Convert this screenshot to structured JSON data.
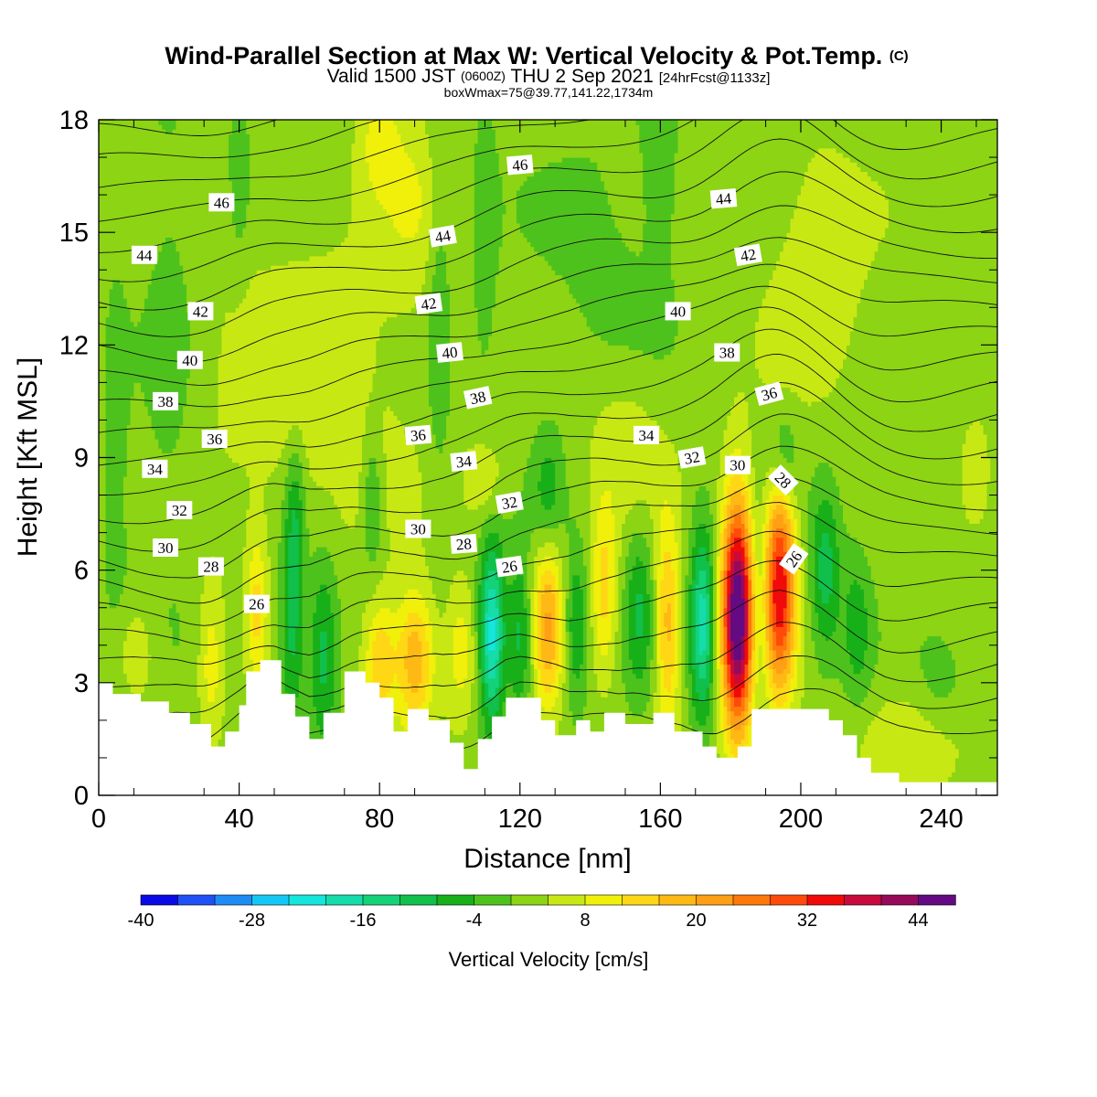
{
  "chart_data": {
    "type": "heatmap",
    "title": "Wind-Parallel Section at Max W: Vertical Velocity & Pot.Temp.",
    "title_mark": "(C)",
    "subtitle": {
      "valid_prefix": "Valid 1500 JST",
      "utc": "(0600Z)",
      "date": "THU 2 Sep 2021",
      "forecast": "[24hrFcst@1133z]"
    },
    "subtitle2": "boxWmax=75@39.77,141.22,1734m",
    "xlabel": "Distance [nm]",
    "ylabel": "Height [Kft MSL]",
    "xlim": [
      0,
      256
    ],
    "ylim": [
      0,
      18
    ],
    "x_ticks": [
      "0",
      "40",
      "80",
      "120",
      "160",
      "200",
      "240"
    ],
    "x_tick_values": [
      0,
      40,
      80,
      120,
      160,
      200,
      240
    ],
    "y_ticks": [
      "0",
      "3",
      "6",
      "9",
      "12",
      "15",
      "18"
    ],
    "y_tick_values": [
      0,
      3,
      6,
      9,
      12,
      15,
      18
    ],
    "colorbar": {
      "label": "Vertical Velocity [cm/s]",
      "tick_labels": [
        "-40",
        "-28",
        "-16",
        "-4",
        "8",
        "20",
        "32",
        "44"
      ],
      "tick_values": [
        -40,
        -28,
        -16,
        -4,
        8,
        20,
        32,
        44
      ],
      "min": -40,
      "max": 48,
      "step": 4,
      "colors": [
        "#0a0ae6",
        "#1e50f5",
        "#1e8cf5",
        "#14c8f5",
        "#14e6dc",
        "#14dcaa",
        "#14d278",
        "#10c04a",
        "#18b018",
        "#4ec21c",
        "#8cd414",
        "#c8e814",
        "#f0f00a",
        "#ffd714",
        "#ffb914",
        "#ffa014",
        "#ff780a",
        "#ff4b0a",
        "#f00a0a",
        "#c80a3c",
        "#960a5a",
        "#640a82"
      ]
    },
    "terrain": [
      [
        0,
        3.0
      ],
      [
        4,
        3.0
      ],
      [
        4,
        2.7
      ],
      [
        12,
        2.7
      ],
      [
        12,
        2.5
      ],
      [
        20,
        2.5
      ],
      [
        20,
        2.2
      ],
      [
        26,
        2.2
      ],
      [
        26,
        1.9
      ],
      [
        32,
        1.9
      ],
      [
        32,
        1.3
      ],
      [
        36,
        1.3
      ],
      [
        36,
        1.7
      ],
      [
        40,
        1.7
      ],
      [
        40,
        2.4
      ],
      [
        42,
        2.4
      ],
      [
        42,
        3.3
      ],
      [
        46,
        3.3
      ],
      [
        46,
        3.6
      ],
      [
        52,
        3.6
      ],
      [
        52,
        2.7
      ],
      [
        56,
        2.7
      ],
      [
        56,
        2.1
      ],
      [
        60,
        2.1
      ],
      [
        60,
        1.5
      ],
      [
        64,
        1.5
      ],
      [
        64,
        2.2
      ],
      [
        70,
        2.2
      ],
      [
        70,
        3.3
      ],
      [
        76,
        3.3
      ],
      [
        76,
        3.0
      ],
      [
        80,
        3.0
      ],
      [
        80,
        2.6
      ],
      [
        84,
        2.6
      ],
      [
        84,
        1.7
      ],
      [
        88,
        1.7
      ],
      [
        88,
        2.3
      ],
      [
        94,
        2.3
      ],
      [
        94,
        2.0
      ],
      [
        100,
        2.0
      ],
      [
        100,
        1.4
      ],
      [
        104,
        1.4
      ],
      [
        104,
        0.7
      ],
      [
        108,
        0.7
      ],
      [
        108,
        1.5
      ],
      [
        112,
        1.5
      ],
      [
        112,
        2.1
      ],
      [
        116,
        2.1
      ],
      [
        116,
        2.6
      ],
      [
        126,
        2.6
      ],
      [
        126,
        2.0
      ],
      [
        130,
        2.0
      ],
      [
        130,
        1.6
      ],
      [
        136,
        1.6
      ],
      [
        136,
        2.0
      ],
      [
        140,
        2.0
      ],
      [
        140,
        1.7
      ],
      [
        144,
        1.7
      ],
      [
        144,
        2.2
      ],
      [
        150,
        2.2
      ],
      [
        150,
        1.9
      ],
      [
        158,
        1.9
      ],
      [
        158,
        2.2
      ],
      [
        164,
        2.2
      ],
      [
        164,
        1.7
      ],
      [
        172,
        1.7
      ],
      [
        172,
        1.3
      ],
      [
        176,
        1.3
      ],
      [
        176,
        1.0
      ],
      [
        182,
        1.0
      ],
      [
        182,
        1.3
      ],
      [
        186,
        1.3
      ],
      [
        186,
        2.3
      ],
      [
        208,
        2.3
      ],
      [
        208,
        2.0
      ],
      [
        212,
        2.0
      ],
      [
        212,
        1.6
      ],
      [
        216,
        1.6
      ],
      [
        216,
        1.0
      ],
      [
        220,
        1.0
      ],
      [
        220,
        0.6
      ],
      [
        228,
        0.6
      ],
      [
        228,
        0.35
      ],
      [
        256,
        0.35
      ]
    ],
    "w_background": 2,
    "w_cells": [
      {
        "x": 182,
        "z": 4.8,
        "sx": 3.2,
        "sz": 2.2,
        "w": 48
      },
      {
        "x": 194,
        "z": 5.6,
        "sx": 3.2,
        "sz": 2.0,
        "w": 34
      },
      {
        "x": 172,
        "z": 4.6,
        "sx": 2.5,
        "sz": 1.8,
        "w": -20
      },
      {
        "x": 188,
        "z": 5.0,
        "sx": 2.0,
        "sz": 2.0,
        "w": -8
      },
      {
        "x": 162,
        "z": 4.5,
        "sx": 2.5,
        "sz": 2.0,
        "w": 16
      },
      {
        "x": 154,
        "z": 5.0,
        "sx": 3.0,
        "sz": 1.6,
        "w": -10
      },
      {
        "x": 144,
        "z": 5.5,
        "sx": 2.6,
        "sz": 1.6,
        "w": 12
      },
      {
        "x": 136,
        "z": 4.5,
        "sx": 2.5,
        "sz": 1.5,
        "w": -10
      },
      {
        "x": 128,
        "z": 4.6,
        "sx": 3.0,
        "sz": 1.6,
        "w": 18
      },
      {
        "x": 120,
        "z": 4.2,
        "sx": 2.5,
        "sz": 1.5,
        "w": -12
      },
      {
        "x": 112,
        "z": 4.3,
        "sx": 2.5,
        "sz": 1.7,
        "w": -24
      },
      {
        "x": 103,
        "z": 3.8,
        "sx": 3.0,
        "sz": 1.3,
        "w": 8
      },
      {
        "x": 90,
        "z": 3.6,
        "sx": 4.0,
        "sz": 1.3,
        "w": 18
      },
      {
        "x": 80,
        "z": 3.5,
        "sx": 3.0,
        "sz": 1.2,
        "w": 14
      },
      {
        "x": 64,
        "z": 3.8,
        "sx": 3.0,
        "sz": 1.8,
        "w": -12
      },
      {
        "x": 55,
        "z": 4.5,
        "sx": 2.5,
        "sz": 2.0,
        "w": -12
      },
      {
        "x": 45,
        "z": 5.0,
        "sx": 2.0,
        "sz": 1.5,
        "w": 10
      },
      {
        "x": 32,
        "z": 3.5,
        "sx": 2.5,
        "sz": 1.5,
        "w": 8
      },
      {
        "x": 10,
        "z": 3.8,
        "sx": 5.0,
        "sz": 1.0,
        "w": 6
      },
      {
        "x": 56,
        "z": 7.5,
        "sx": 2.0,
        "sz": 1.6,
        "w": -8
      },
      {
        "x": 78,
        "z": 7.8,
        "sx": 2.0,
        "sz": 1.4,
        "w": -8
      },
      {
        "x": 128,
        "z": 8.0,
        "sx": 3.0,
        "sz": 1.2,
        "w": -8
      },
      {
        "x": 195,
        "z": 9.0,
        "sx": 3.0,
        "sz": 1.0,
        "w": -9
      },
      {
        "x": 207,
        "z": 6.0,
        "sx": 3.0,
        "sz": 1.6,
        "w": -12
      },
      {
        "x": 216,
        "z": 4.5,
        "sx": 3.0,
        "sz": 1.5,
        "w": -8
      },
      {
        "x": 232,
        "z": 1.5,
        "sx": 12.0,
        "sz": 1.0,
        "w": 5
      },
      {
        "x": 240,
        "z": 2.8,
        "sx": 5.0,
        "sz": 1.0,
        "w": -4
      },
      {
        "x": 150,
        "z": 9.4,
        "sx": 8.0,
        "sz": 1.5,
        "w": 5
      },
      {
        "x": 110,
        "z": 8.4,
        "sx": 4.0,
        "sz": 0.8,
        "w": 6
      },
      {
        "x": 60,
        "z": 10.8,
        "sx": 20.0,
        "sz": 3.0,
        "w": 5
      },
      {
        "x": 20,
        "z": 12.0,
        "sx": 5.0,
        "sz": 5.0,
        "w": -4
      },
      {
        "x": 5,
        "z": 8.0,
        "sx": 3.0,
        "sz": 5.0,
        "w": -4
      },
      {
        "x": 97,
        "z": 13.5,
        "sx": 2.5,
        "sz": 4.0,
        "w": -6
      },
      {
        "x": 110,
        "z": 15.0,
        "sx": 2.5,
        "sz": 3.0,
        "w": -5
      },
      {
        "x": 40,
        "z": 17.0,
        "sx": 2.0,
        "sz": 2.0,
        "w": -5
      },
      {
        "x": 80,
        "z": 17.5,
        "sx": 4.0,
        "sz": 1.0,
        "w": 7
      },
      {
        "x": 90,
        "z": 16.0,
        "sx": 8.0,
        "sz": 2.0,
        "w": 5
      },
      {
        "x": 145,
        "z": 14.5,
        "sx": 15.0,
        "sz": 3.0,
        "w": -3
      },
      {
        "x": 205,
        "z": 14.0,
        "sx": 10.0,
        "sz": 2.5,
        "w": 5
      },
      {
        "x": 160,
        "z": 17.0,
        "sx": 3.0,
        "sz": 2.0,
        "w": -5
      },
      {
        "x": 250,
        "z": 8.5,
        "sx": 3.0,
        "sz": 1.0,
        "w": 6
      }
    ],
    "theta_lines": {
      "min": 23,
      "max": 48,
      "step": 1,
      "surface_value": 23.4,
      "lapse_per_kft": 1.33
    },
    "contour_labels": [
      {
        "text": "46",
        "x": 35,
        "z": 15.8,
        "angle": 0
      },
      {
        "text": "44",
        "x": 13,
        "z": 14.4,
        "angle": 0
      },
      {
        "text": "42",
        "x": 29,
        "z": 12.9,
        "angle": 0
      },
      {
        "text": "40",
        "x": 26,
        "z": 11.6,
        "angle": 0
      },
      {
        "text": "38",
        "x": 19,
        "z": 10.5,
        "angle": 0
      },
      {
        "text": "36",
        "x": 33,
        "z": 9.5,
        "angle": 0
      },
      {
        "text": "34",
        "x": 16,
        "z": 8.7,
        "angle": 0
      },
      {
        "text": "32",
        "x": 23,
        "z": 7.6,
        "angle": 0
      },
      {
        "text": "30",
        "x": 19,
        "z": 6.6,
        "angle": 0
      },
      {
        "text": "28",
        "x": 32,
        "z": 6.1,
        "angle": 0
      },
      {
        "text": "26",
        "x": 45,
        "z": 5.1,
        "angle": 0
      },
      {
        "text": "46",
        "x": 120,
        "z": 16.8,
        "angle": -5
      },
      {
        "text": "44",
        "x": 98,
        "z": 14.9,
        "angle": -10
      },
      {
        "text": "42",
        "x": 94,
        "z": 13.1,
        "angle": -8
      },
      {
        "text": "40",
        "x": 100,
        "z": 11.8,
        "angle": -6
      },
      {
        "text": "38",
        "x": 108,
        "z": 10.6,
        "angle": -12
      },
      {
        "text": "36",
        "x": 91,
        "z": 9.6,
        "angle": -5
      },
      {
        "text": "34",
        "x": 104,
        "z": 8.9,
        "angle": -6
      },
      {
        "text": "32",
        "x": 117,
        "z": 7.8,
        "angle": -10
      },
      {
        "text": "30",
        "x": 91,
        "z": 7.1,
        "angle": 0
      },
      {
        "text": "28",
        "x": 104,
        "z": 6.7,
        "angle": -4
      },
      {
        "text": "26",
        "x": 117,
        "z": 6.1,
        "angle": -8
      },
      {
        "text": "44",
        "x": 178,
        "z": 15.9,
        "angle": -5
      },
      {
        "text": "42",
        "x": 185,
        "z": 14.4,
        "angle": -10
      },
      {
        "text": "40",
        "x": 165,
        "z": 12.9,
        "angle": 0
      },
      {
        "text": "38",
        "x": 179,
        "z": 11.8,
        "angle": 0
      },
      {
        "text": "36",
        "x": 191,
        "z": 10.7,
        "angle": -15
      },
      {
        "text": "34",
        "x": 156,
        "z": 9.6,
        "angle": 0
      },
      {
        "text": "32",
        "x": 169,
        "z": 9.0,
        "angle": -10
      },
      {
        "text": "30",
        "x": 182,
        "z": 8.8,
        "angle": 0
      },
      {
        "text": "28",
        "x": 195,
        "z": 8.4,
        "angle": 45
      },
      {
        "text": "26",
        "x": 198,
        "z": 6.3,
        "angle": -55
      }
    ]
  }
}
